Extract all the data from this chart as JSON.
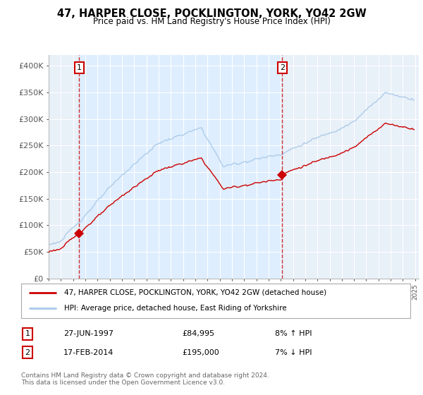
{
  "title": "47, HARPER CLOSE, POCKLINGTON, YORK, YO42 2GW",
  "subtitle": "Price paid vs. HM Land Registry's House Price Index (HPI)",
  "ylim": [
    0,
    420000
  ],
  "yticks": [
    0,
    50000,
    100000,
    150000,
    200000,
    250000,
    300000,
    350000,
    400000
  ],
  "ytick_labels": [
    "£0",
    "£50K",
    "£100K",
    "£150K",
    "£200K",
    "£250K",
    "£300K",
    "£350K",
    "£400K"
  ],
  "x_start_year": 1995,
  "x_end_year": 2025,
  "hpi_color": "#a8c8e8",
  "price_color": "#cc0000",
  "shade_color": "#ddeeff",
  "sale1_year": 1997.5,
  "sale1_price": 84995,
  "sale2_year": 2014.12,
  "sale2_price": 195000,
  "legend_line1": "47, HARPER CLOSE, POCKLINGTON, YORK, YO42 2GW (detached house)",
  "legend_line2": "HPI: Average price, detached house, East Riding of Yorkshire",
  "table_row1_date": "27-JUN-1997",
  "table_row1_price": "£84,995",
  "table_row1_hpi": "8% ↑ HPI",
  "table_row2_date": "17-FEB-2014",
  "table_row2_price": "£195,000",
  "table_row2_hpi": "7% ↓ HPI",
  "footer": "Contains HM Land Registry data © Crown copyright and database right 2024.\nThis data is licensed under the Open Government Licence v3.0.",
  "bg_color": "#ddeeff",
  "plot_bg_color": "#e8f0f8"
}
